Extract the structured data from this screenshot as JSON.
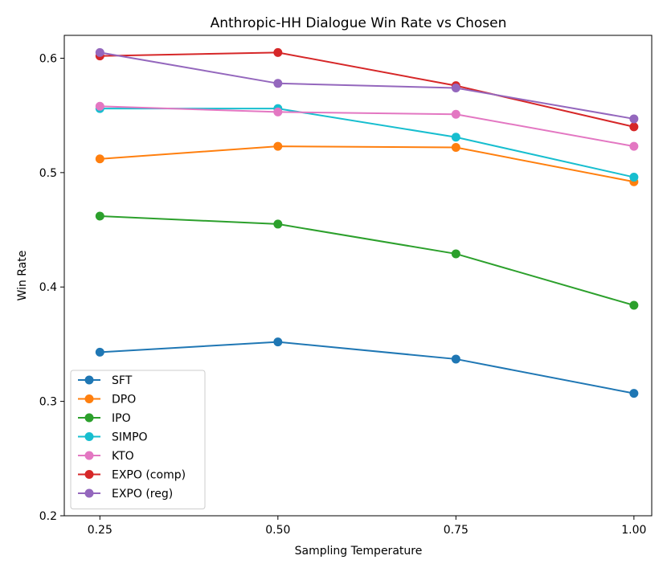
{
  "chart_data": {
    "type": "line",
    "title": "Anthropic-HH Dialogue Win Rate vs Chosen",
    "xlabel": "Sampling Temperature",
    "ylabel": "Win Rate",
    "x": [
      0.25,
      0.5,
      0.75,
      1.0
    ],
    "x_tick_labels": [
      "0.25",
      "0.50",
      "0.75",
      "1.00"
    ],
    "y_ticks": [
      0.2,
      0.3,
      0.4,
      0.5,
      0.6
    ],
    "y_tick_labels": [
      "0.2",
      "0.3",
      "0.4",
      "0.5",
      "0.6"
    ],
    "xlim": [
      0.2,
      1.025
    ],
    "ylim": [
      0.2,
      0.62
    ],
    "grid": false,
    "legend_position": "lower-left",
    "series": [
      {
        "name": "SFT",
        "color": "#1f77b4",
        "values": [
          0.343,
          0.352,
          0.337,
          0.307
        ]
      },
      {
        "name": "DPO",
        "color": "#ff7f0e",
        "values": [
          0.512,
          0.523,
          0.522,
          0.492
        ]
      },
      {
        "name": "IPO",
        "color": "#2ca02c",
        "values": [
          0.462,
          0.455,
          0.429,
          0.384
        ]
      },
      {
        "name": "SIMPO",
        "color": "#17becf",
        "values": [
          0.556,
          0.556,
          0.531,
          0.496
        ]
      },
      {
        "name": "KTO",
        "color": "#e377c2",
        "values": [
          0.558,
          0.553,
          0.551,
          0.523
        ]
      },
      {
        "name": "EXPO (comp)",
        "color": "#d62728",
        "values": [
          0.602,
          0.605,
          0.576,
          0.54
        ]
      },
      {
        "name": "EXPO (reg)",
        "color": "#9467bd",
        "values": [
          0.605,
          0.578,
          0.574,
          0.547
        ]
      }
    ]
  }
}
